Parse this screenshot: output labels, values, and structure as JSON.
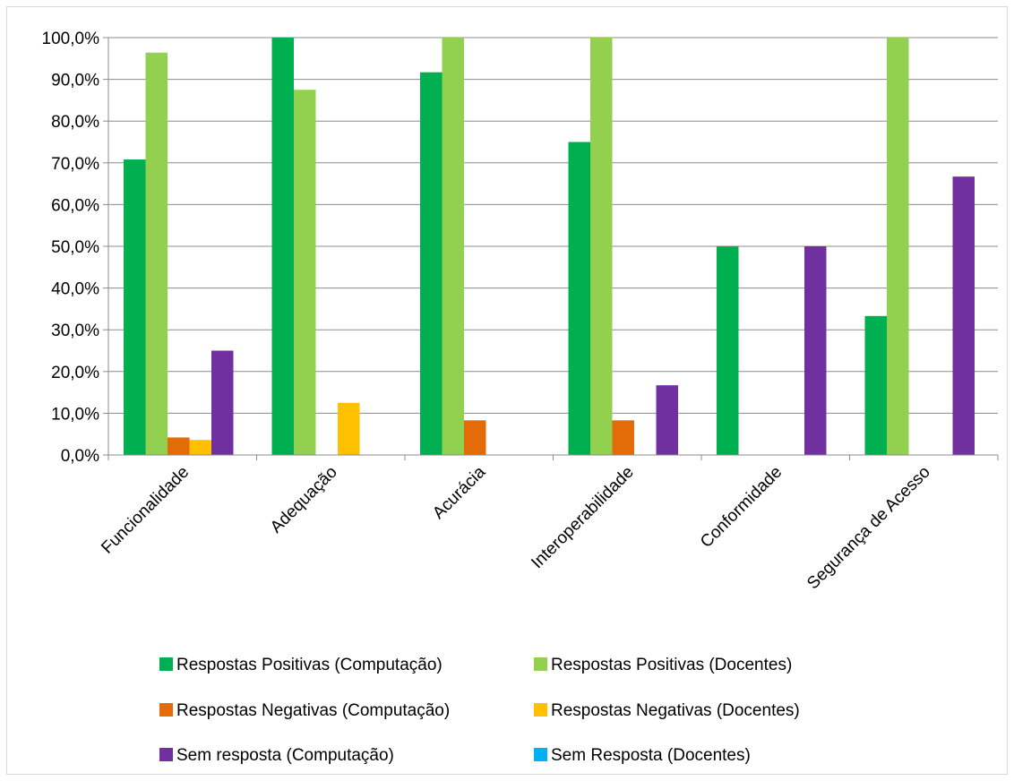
{
  "chart_data": {
    "type": "bar",
    "categories": [
      "Funcionalidade",
      "Adequação",
      "Acurácia",
      "Interoperabilidade",
      "Conformidade",
      "Segurança de Acesso"
    ],
    "y_ticks": [
      "0,0%",
      "10,0%",
      "20,0%",
      "30,0%",
      "40,0%",
      "50,0%",
      "60,0%",
      "70,0%",
      "80,0%",
      "90,0%",
      "100,0%"
    ],
    "ylim": [
      0,
      100
    ],
    "grid": true,
    "legend_position": "bottom",
    "series": [
      {
        "name": "Respostas Positivas (Computação)",
        "color": "#00b050",
        "values": [
          70.8,
          100,
          91.7,
          75.0,
          50.0,
          33.3
        ]
      },
      {
        "name": "Respostas Positivas (Docentes)",
        "color": "#92d050",
        "values": [
          96.4,
          87.5,
          100,
          100,
          0,
          100
        ]
      },
      {
        "name": "Respostas Negativas (Computação)",
        "color": "#e36c09",
        "values": [
          4.2,
          0,
          8.3,
          8.3,
          0,
          0
        ]
      },
      {
        "name": "Respostas Negativas (Docentes)",
        "color": "#ffc000",
        "values": [
          3.6,
          12.5,
          0,
          0,
          0,
          0
        ]
      },
      {
        "name": "Sem resposta (Computação)",
        "color": "#7030a0",
        "values": [
          25.0,
          0,
          0,
          16.7,
          50.0,
          66.7
        ]
      },
      {
        "name": "Sem Resposta (Docentes)",
        "color": "#00b0f0",
        "values": [
          0,
          0,
          0,
          0,
          0,
          0
        ]
      }
    ]
  }
}
